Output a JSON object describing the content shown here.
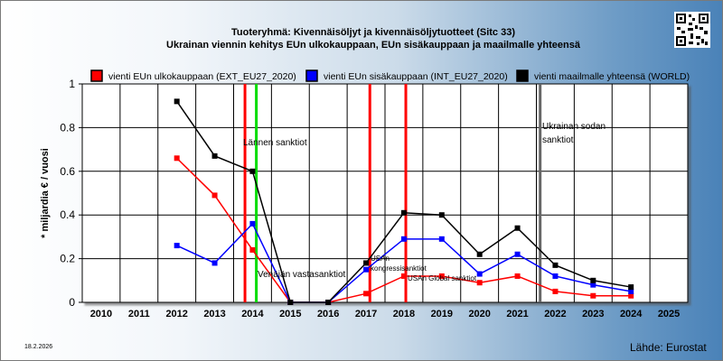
{
  "chart_data": {
    "type": "line",
    "title": "Tuoteryhmä: Kivennäisöljyt ja kivennäisöljytuotteet (Sitc 33)",
    "subtitle": "Ukrainan viennin kehitys EUn ulkokauppaan, EUn sisäkauppaan ja maailmalle yhteensä",
    "ylabel": "* miljardia € / vuosi",
    "xlabel": "",
    "categories": [
      "2010",
      "2011",
      "2012",
      "2013",
      "2014",
      "2015",
      "2016",
      "2017",
      "2018",
      "2019",
      "2020",
      "2021",
      "2022",
      "2023",
      "2024",
      "2025"
    ],
    "ylim": [
      0,
      1
    ],
    "yticks": [
      "0",
      "0.2",
      "0.4",
      "0.6",
      "0.8",
      "1"
    ],
    "grid": true,
    "legend_position": "top",
    "series": [
      {
        "name": "vienti EUn ulkokauppaan (EXT_EU27_2020)",
        "color": "#ff0000",
        "values": [
          null,
          null,
          0.66,
          0.49,
          0.24,
          0.0,
          0.0,
          0.04,
          0.12,
          0.12,
          0.09,
          0.12,
          0.05,
          0.03,
          0.03,
          null
        ]
      },
      {
        "name": "vienti EUn sisäkauppaan (INT_EU27_2020)",
        "color": "#0000ff",
        "values": [
          null,
          null,
          0.26,
          0.18,
          0.36,
          0.0,
          0.0,
          0.15,
          0.29,
          0.29,
          0.13,
          0.22,
          0.12,
          0.08,
          0.05,
          null
        ]
      },
      {
        "name": "vienti maailmalle yhteensä (WORLD)",
        "color": "#000000",
        "values": [
          null,
          null,
          0.92,
          0.67,
          0.6,
          0.0,
          0.0,
          0.18,
          0.41,
          0.4,
          0.22,
          0.34,
          0.17,
          0.1,
          0.07,
          null
        ]
      }
    ],
    "annotations": [
      {
        "id": "lannen",
        "text": "Lännen sanktiot"
      },
      {
        "id": "venajan",
        "text": "Venäjän vastasanktiot"
      },
      {
        "id": "usan1",
        "text": "USAn"
      },
      {
        "id": "usan2",
        "text": "kongressisanktiot"
      },
      {
        "id": "usan-global",
        "text": "USAn Global sanktiot"
      },
      {
        "id": "sota1",
        "text": "Ukrainan sodan"
      },
      {
        "id": "sota2",
        "text": "sanktiot"
      }
    ],
    "vertical_markers": [
      {
        "x": 2013.8,
        "color": "#ff0000"
      },
      {
        "x": 2014.1,
        "color": "#00dd00"
      },
      {
        "x": 2017.1,
        "color": "#ff0000"
      },
      {
        "x": 2018.05,
        "color": "#ff0000"
      },
      {
        "x": 2021.6,
        "color": "#666666"
      }
    ]
  },
  "footer": {
    "date": "18.2.2026",
    "source": "Lähde: Eurostat"
  },
  "icons": {
    "qr": "qr-code-icon"
  }
}
